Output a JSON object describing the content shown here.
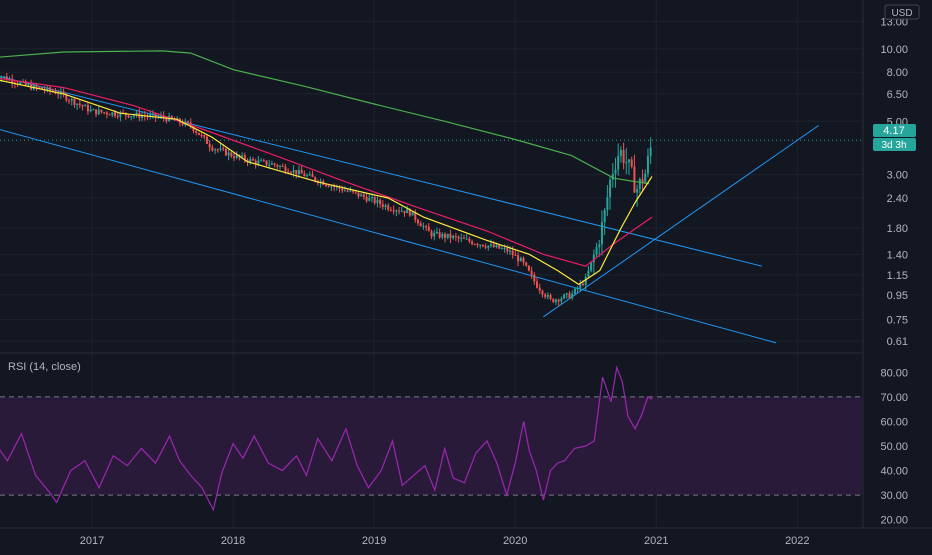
{
  "header": {
    "currency_label": "USD"
  },
  "price_tag": {
    "value": "4.17",
    "countdown": "3d 3h"
  },
  "colors": {
    "background": "#131722",
    "grid": "#1e222d",
    "axis_text": "#b2b5be",
    "candle_up": "#26a69a",
    "candle_down": "#ef5350",
    "channel": "#2196f3",
    "ma_long": "#4caf50",
    "ma_mid": "#e91e63",
    "ma_short": "#ffeb3b",
    "rsi_line": "#9c27b0",
    "rsi_band": "#2a1a3a",
    "price_tag_bg": "#26a69a"
  },
  "chart_data": [
    {
      "type": "candlestick",
      "title": "",
      "scale": "log",
      "ylim": [
        0.55,
        14.5
      ],
      "x_ticks": [
        "2017",
        "2018",
        "2019",
        "2020",
        "2021",
        "2022"
      ],
      "y_ticks": [
        "13.00",
        "10.00",
        "8.00",
        "6.50",
        "5.00",
        "4.17",
        "3.00",
        "2.40",
        "1.80",
        "1.40",
        "1.15",
        "0.95",
        "0.75",
        "0.61"
      ],
      "last_price": 4.17,
      "path_points": [
        [
          2016.3,
          7.9
        ],
        [
          2016.55,
          7.0
        ],
        [
          2016.75,
          6.6
        ],
        [
          2017.0,
          5.5
        ],
        [
          2017.3,
          5.3
        ],
        [
          2017.5,
          5.2
        ],
        [
          2017.7,
          4.8
        ],
        [
          2017.85,
          3.9
        ],
        [
          2018.0,
          3.6
        ],
        [
          2018.15,
          3.4
        ],
        [
          2018.3,
          3.3
        ],
        [
          2018.5,
          3.0
        ],
        [
          2018.7,
          2.7
        ],
        [
          2018.95,
          2.4
        ],
        [
          2019.1,
          2.2
        ],
        [
          2019.25,
          2.1
        ],
        [
          2019.4,
          1.7
        ],
        [
          2019.55,
          1.65
        ],
        [
          2019.75,
          1.55
        ],
        [
          2019.95,
          1.45
        ],
        [
          2020.05,
          1.3
        ],
        [
          2020.15,
          1.05
        ],
        [
          2020.25,
          0.9
        ],
        [
          2020.4,
          0.95
        ],
        [
          2020.5,
          1.1
        ],
        [
          2020.58,
          1.5
        ],
        [
          2020.63,
          2.0
        ],
        [
          2020.68,
          3.0
        ],
        [
          2020.74,
          3.8
        ],
        [
          2020.8,
          3.3
        ],
        [
          2020.86,
          2.6
        ],
        [
          2020.92,
          3.0
        ],
        [
          2020.97,
          4.1
        ]
      ],
      "moving_averages": [
        {
          "period": "long",
          "color": "#4caf50",
          "points": [
            [
              2016.3,
              9.2
            ],
            [
              2016.8,
              9.7
            ],
            [
              2017.5,
              9.8
            ],
            [
              2017.7,
              9.6
            ],
            [
              2018.0,
              8.2
            ],
            [
              2018.5,
              7.0
            ],
            [
              2019.0,
              5.9
            ],
            [
              2019.5,
              5.0
            ],
            [
              2020.0,
              4.2
            ],
            [
              2020.4,
              3.6
            ],
            [
              2020.7,
              2.9
            ],
            [
              2020.95,
              2.75
            ]
          ]
        },
        {
          "period": "mid",
          "color": "#e91e63",
          "points": [
            [
              2016.3,
              7.6
            ],
            [
              2016.8,
              6.9
            ],
            [
              2017.3,
              5.8
            ],
            [
              2017.8,
              4.6
            ],
            [
              2018.3,
              3.6
            ],
            [
              2018.8,
              2.8
            ],
            [
              2019.3,
              2.2
            ],
            [
              2019.8,
              1.75
            ],
            [
              2020.2,
              1.4
            ],
            [
              2020.5,
              1.25
            ],
            [
              2020.7,
              1.55
            ],
            [
              2020.97,
              2.0
            ]
          ]
        },
        {
          "period": "short",
          "color": "#ffeb3b",
          "points": [
            [
              2016.3,
              7.5
            ],
            [
              2016.8,
              6.5
            ],
            [
              2017.2,
              5.4
            ],
            [
              2017.6,
              5.1
            ],
            [
              2017.85,
              4.3
            ],
            [
              2018.1,
              3.4
            ],
            [
              2018.6,
              2.8
            ],
            [
              2019.1,
              2.4
            ],
            [
              2019.35,
              2.0
            ],
            [
              2019.8,
              1.6
            ],
            [
              2020.1,
              1.4
            ],
            [
              2020.3,
              1.2
            ],
            [
              2020.45,
              1.05
            ],
            [
              2020.6,
              1.2
            ],
            [
              2020.75,
              1.8
            ],
            [
              2020.85,
              2.3
            ],
            [
              2020.97,
              2.95
            ]
          ]
        }
      ],
      "trend_lines": [
        {
          "label": "channel-upper",
          "from": [
            2016.3,
            7.8
          ],
          "to": [
            2021.75,
            1.25
          ]
        },
        {
          "label": "channel-lower",
          "from": [
            2016.3,
            4.7
          ],
          "to": [
            2021.85,
            0.6
          ]
        },
        {
          "label": "rising-support",
          "from": [
            2020.2,
            0.77
          ],
          "to": [
            2022.15,
            4.8
          ]
        }
      ]
    },
    {
      "type": "line",
      "title": "RSI (14, close)",
      "ylim": [
        17,
        85
      ],
      "y_ticks": [
        "80.00",
        "70.00",
        "60.00",
        "50.00",
        "40.00",
        "30.00",
        "20.00"
      ],
      "band": [
        30,
        70
      ],
      "series": [
        {
          "values": [
            [
              2016.3,
              52
            ],
            [
              2016.4,
              44
            ],
            [
              2016.5,
              55
            ],
            [
              2016.6,
              38
            ],
            [
              2016.7,
              31
            ],
            [
              2016.75,
              27
            ],
            [
              2016.85,
              40
            ],
            [
              2016.95,
              44
            ],
            [
              2017.05,
              33
            ],
            [
              2017.15,
              46
            ],
            [
              2017.25,
              42
            ],
            [
              2017.35,
              49
            ],
            [
              2017.45,
              43
            ],
            [
              2017.55,
              54
            ],
            [
              2017.62,
              44
            ],
            [
              2017.7,
              38
            ],
            [
              2017.78,
              33
            ],
            [
              2017.86,
              24
            ],
            [
              2017.92,
              39
            ],
            [
              2018.0,
              51
            ],
            [
              2018.07,
              45
            ],
            [
              2018.15,
              54
            ],
            [
              2018.25,
              43
            ],
            [
              2018.35,
              40
            ],
            [
              2018.45,
              46
            ],
            [
              2018.52,
              38
            ],
            [
              2018.6,
              53
            ],
            [
              2018.7,
              44
            ],
            [
              2018.8,
              57
            ],
            [
              2018.88,
              42
            ],
            [
              2018.96,
              33
            ],
            [
              2019.05,
              40
            ],
            [
              2019.13,
              52
            ],
            [
              2019.2,
              34
            ],
            [
              2019.28,
              38
            ],
            [
              2019.36,
              42
            ],
            [
              2019.43,
              32
            ],
            [
              2019.5,
              49
            ],
            [
              2019.56,
              37
            ],
            [
              2019.64,
              35
            ],
            [
              2019.72,
              47
            ],
            [
              2019.8,
              52
            ],
            [
              2019.87,
              43
            ],
            [
              2019.94,
              30
            ],
            [
              2020.0,
              43
            ],
            [
              2020.06,
              60
            ],
            [
              2020.1,
              48
            ],
            [
              2020.15,
              40
            ],
            [
              2020.2,
              28
            ],
            [
              2020.25,
              40
            ],
            [
              2020.3,
              43
            ],
            [
              2020.35,
              44
            ],
            [
              2020.42,
              49
            ],
            [
              2020.5,
              50
            ],
            [
              2020.56,
              52
            ],
            [
              2020.62,
              78
            ],
            [
              2020.68,
              68
            ],
            [
              2020.72,
              82
            ],
            [
              2020.76,
              76
            ],
            [
              2020.8,
              62
            ],
            [
              2020.85,
              57
            ],
            [
              2020.9,
              63
            ],
            [
              2020.94,
              70
            ],
            [
              2020.97,
              69
            ]
          ]
        }
      ]
    }
  ]
}
